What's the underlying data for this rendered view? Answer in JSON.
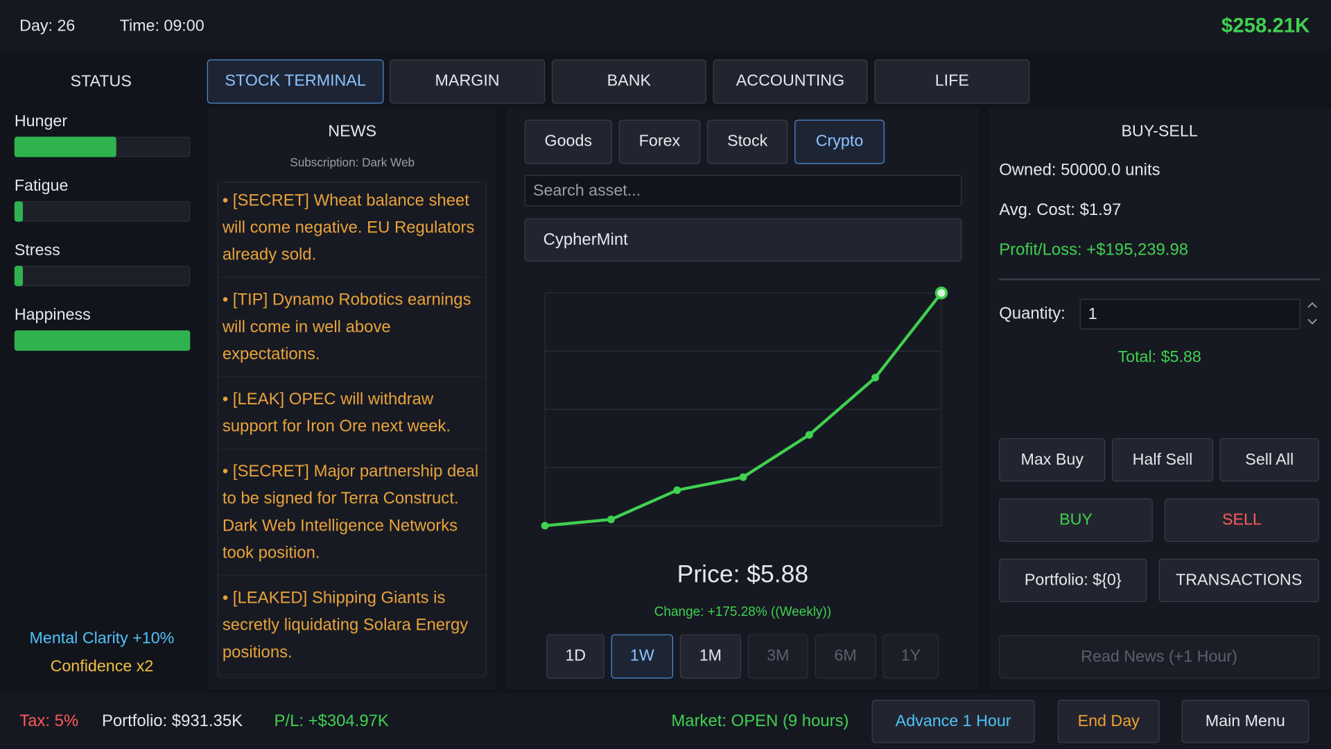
{
  "top": {
    "day": "Day: 26",
    "time": "Time: 09:00",
    "cash": "$258.21K"
  },
  "status": {
    "title": "STATUS",
    "bars": [
      {
        "label": "Hunger",
        "value": 58
      },
      {
        "label": "Fatigue",
        "value": 5
      },
      {
        "label": "Stress",
        "value": 5
      },
      {
        "label": "Happiness",
        "value": 100
      }
    ],
    "buffs": [
      "Mental Clarity +10%",
      "Confidence x2"
    ]
  },
  "tabs": {
    "items": [
      "STOCK TERMINAL",
      "MARGIN",
      "BANK",
      "ACCOUNTING",
      "LIFE"
    ],
    "active": 0
  },
  "news": {
    "title": "NEWS",
    "subscription": "Subscription: Dark Web",
    "items": [
      "• [SECRET] Wheat balance sheet will come negative. EU Regulators already sold.",
      "• [TIP] Dynamo Robotics earnings will come in well above expectations.",
      "• [LEAK] OPEC will withdraw support for Iron Ore next week.",
      "• [SECRET] Major partnership deal to be signed for Terra Construct. Dark Web Intelligence Networks took position.",
      "• [LEAKED] Shipping Giants is secretly liquidating Solara Energy positions."
    ]
  },
  "market": {
    "asset_tabs": [
      "Goods",
      "Forex",
      "Stock",
      "Crypto"
    ],
    "active_asset": 3,
    "search_placeholder": "Search asset...",
    "selected_asset": "CypherMint",
    "chart_data": {
      "type": "line",
      "color": "#3fd14f",
      "values": [
        2.14,
        2.24,
        2.71,
        2.92,
        3.6,
        4.52,
        5.88
      ]
    },
    "price": "Price: $5.88",
    "change": "Change: +175.28% ((Weekly))",
    "ranges": [
      "1D",
      "1W",
      "1M",
      "3M",
      "6M",
      "1Y"
    ],
    "active_range": 1,
    "enabled_ranges": 3
  },
  "trade": {
    "title": "BUY-SELL",
    "owned": "Owned: 50000.0 units",
    "avg_cost": "Avg. Cost: $1.97",
    "profit_loss": "Profit/Loss: +$195,239.98",
    "quantity_label": "Quantity:",
    "quantity": "1",
    "total": "Total: $5.88",
    "buttons": [
      "Max Buy",
      "Half Sell",
      "Sell All"
    ],
    "buy": "BUY",
    "sell": "SELL",
    "portfolio": "Portfolio: ${0}",
    "transactions": "TRANSACTIONS",
    "read_news": "Read News (+1 Hour)"
  },
  "bottom": {
    "tax": "Tax: 5%",
    "portfolio": "Portfolio: $931.35K",
    "pl": "P/L: +$304.97K",
    "market_status": "Market: OPEN (9 hours)",
    "advance": "Advance 1 Hour",
    "end_day": "End Day",
    "main_menu": "Main Menu"
  }
}
